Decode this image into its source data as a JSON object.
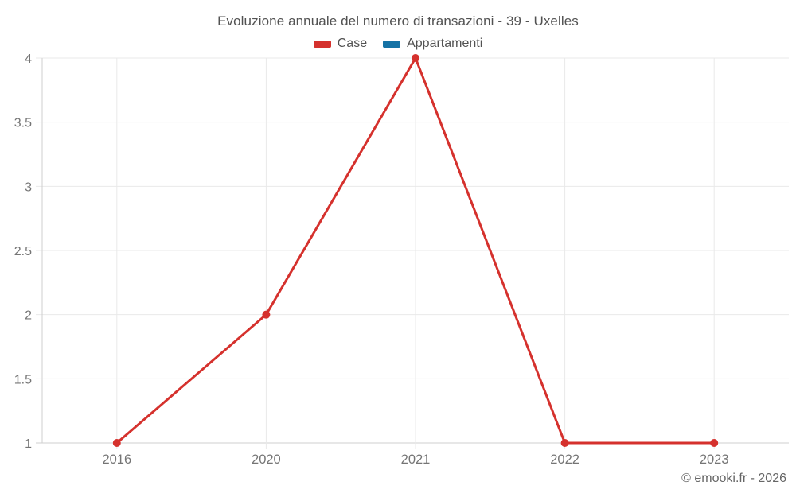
{
  "title": "Evoluzione annuale del numero di transazioni - 39 - Uxelles",
  "footer": "© emooki.fr - 2026",
  "colors": {
    "case_red": "#d5312d",
    "appartamenti_blue": "#1572a5",
    "gridline": "#e9e9e9",
    "axis_line": "#cfcfcf",
    "tick_label": "#757575",
    "title_text": "#525252",
    "footer_text": "#666666"
  },
  "chart_data": {
    "type": "line",
    "title": "Evoluzione annuale del numero di transazioni - 39 - Uxelles",
    "categories": [
      "2016",
      "2020",
      "2021",
      "2022",
      "2023"
    ],
    "series": [
      {
        "name": "Case",
        "color": "#d5312d",
        "values": [
          1,
          2,
          4,
          1,
          1
        ]
      },
      {
        "name": "Appartamenti",
        "color": "#1572a5",
        "values": []
      }
    ],
    "xlabel": "",
    "ylabel": "",
    "ylim": [
      1,
      4
    ],
    "yticks": [
      1,
      1.5,
      2,
      2.5,
      3,
      3.5,
      4
    ],
    "grid": true,
    "legend_position": "top"
  }
}
